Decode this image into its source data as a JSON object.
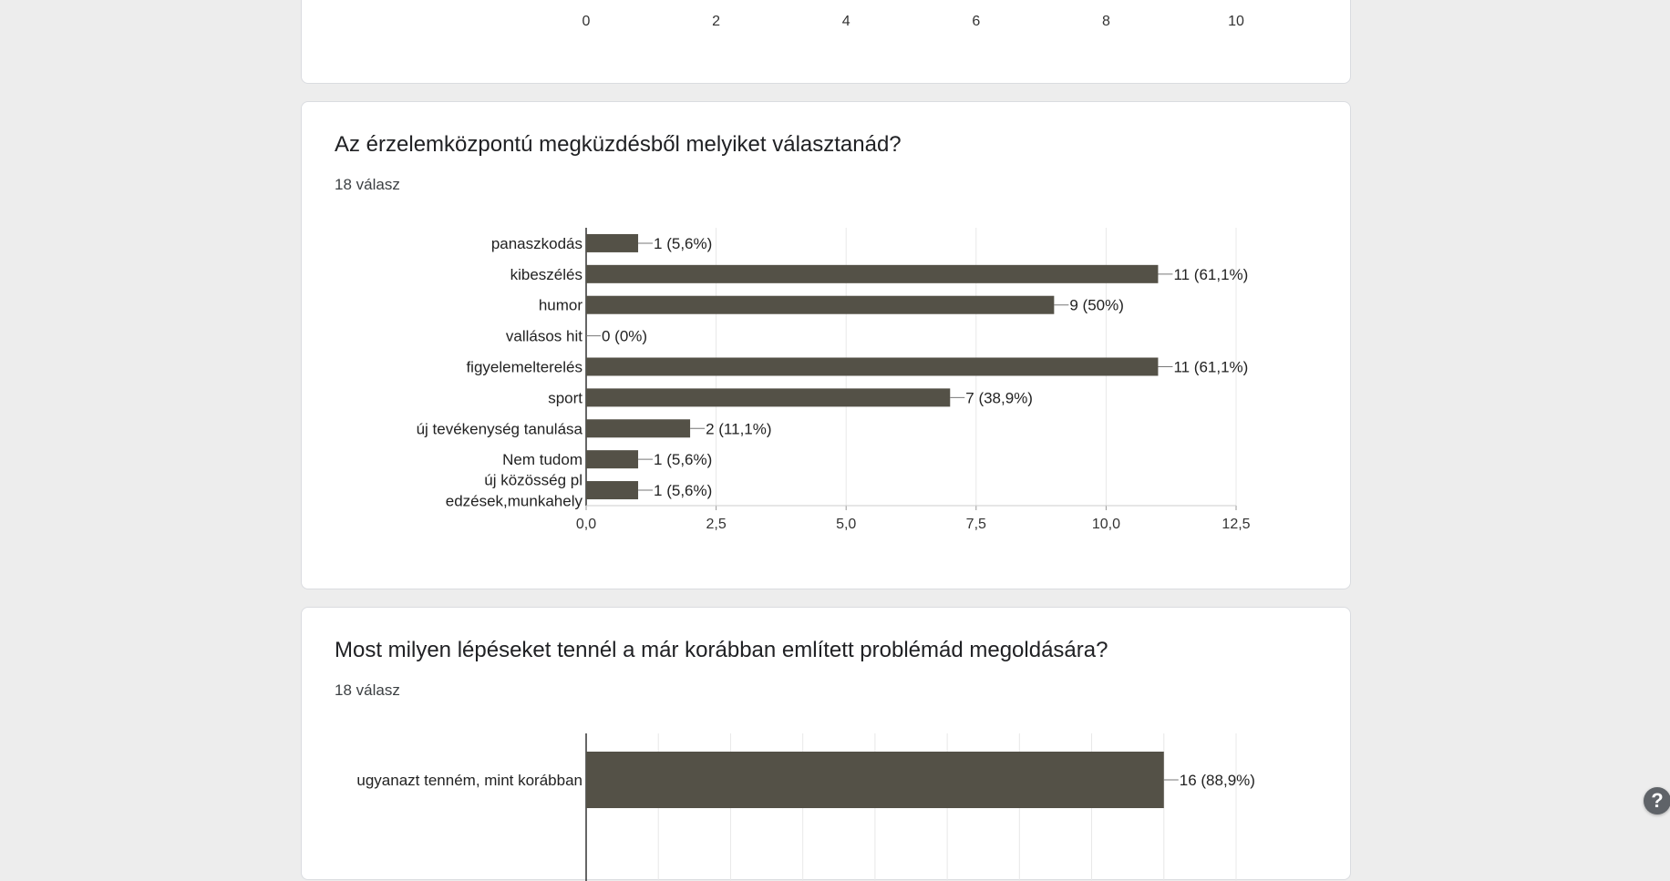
{
  "top_axis": {
    "ticks": [
      "0",
      "2",
      "4",
      "6",
      "8",
      "10"
    ],
    "values": [
      0,
      2,
      4,
      6,
      8,
      10
    ],
    "range": [
      0,
      10
    ]
  },
  "question1": {
    "title": "Az érzelemközpontú megküzdésből melyiket választanád?",
    "response_count": "18 válasz"
  },
  "question2": {
    "title": "Most milyen lépéseket tennél a már korábban említett problémád megoldására?",
    "response_count": "18 válasz"
  },
  "help": {
    "label": "?",
    "icon": "help-icon"
  },
  "colors": {
    "bar": "#545147",
    "grid": "#e8e8e8",
    "axis": "#333333",
    "card_bg": "#ffffff",
    "page_bg": "#ededed"
  },
  "chart_data": [
    {
      "type": "bar",
      "orientation": "horizontal",
      "categories": [
        [
          "panaszkodás"
        ],
        [
          "kibeszélés"
        ],
        [
          "humor"
        ],
        [
          "vallásos hit"
        ],
        [
          "figyelemelterelés"
        ],
        [
          "sport"
        ],
        [
          "új tevékenység tanulása"
        ],
        [
          "Nem tudom"
        ],
        [
          "új közösség pl",
          "edzések,munkahely"
        ]
      ],
      "values": [
        1,
        11,
        9,
        0,
        11,
        7,
        2,
        1,
        1
      ],
      "data_labels": [
        "1 (5,6%)",
        "11 (61,1%)",
        "9 (50%)",
        "0 (0%)",
        "11 (61,1%)",
        "7 (38,9%)",
        "2 (11,1%)",
        "1 (5,6%)",
        "1 (5,6%)"
      ],
      "x_ticks": [
        "0,0",
        "2,5",
        "5,0",
        "7,5",
        "10,0",
        "12,5"
      ],
      "x_tick_values": [
        0,
        2.5,
        5,
        7.5,
        10,
        12.5
      ],
      "xlim": [
        0,
        12.5
      ],
      "grid": true
    },
    {
      "type": "bar",
      "orientation": "horizontal",
      "categories": [
        [
          "ugyanazt tenném, mint korábban"
        ]
      ],
      "values": [
        16
      ],
      "data_labels": [
        "16 (88,9%)"
      ],
      "xlim": [
        0,
        18
      ],
      "gridlines_at": [
        0,
        2,
        4,
        6,
        8,
        10,
        12,
        14,
        16,
        18
      ],
      "grid": true
    }
  ]
}
